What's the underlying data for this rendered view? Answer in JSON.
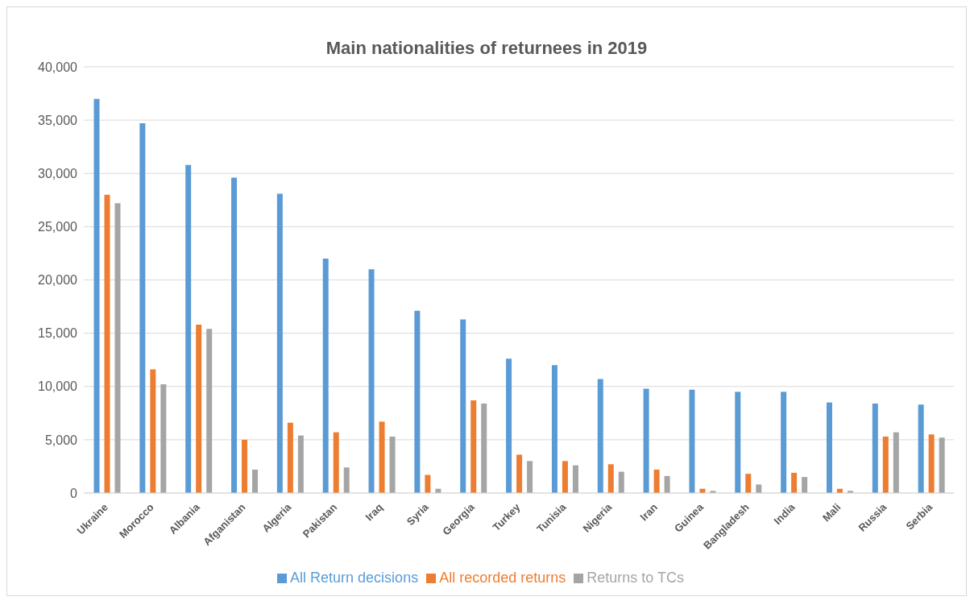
{
  "chart_data": {
    "type": "bar",
    "title": "Main nationalities of returnees in 2019",
    "categories": [
      "Ukraine",
      "Morocco",
      "Albania",
      "Afganistan",
      "Algeria",
      "Pakistan",
      "Iraq",
      "Syria",
      "Georgia",
      "Turkey",
      "Tunisia",
      "Nigeria",
      "Iran",
      "Guinea",
      "Bangladesh",
      "India",
      "Mali",
      "Russia",
      "Serbia"
    ],
    "series": [
      {
        "name": "All Return decisions",
        "color": "#5b9bd5",
        "values": [
          37000,
          34700,
          30800,
          29600,
          28100,
          22000,
          21000,
          17100,
          16300,
          12600,
          12000,
          10700,
          9800,
          9700,
          9500,
          9500,
          8500,
          8400,
          8300
        ]
      },
      {
        "name": "All recorded returns",
        "color": "#ed7d31",
        "values": [
          28000,
          11600,
          15800,
          5000,
          6600,
          5700,
          6700,
          1700,
          8700,
          3600,
          3000,
          2700,
          2200,
          400,
          1800,
          1900,
          400,
          5300,
          5500
        ]
      },
      {
        "name": "Returns to TCs",
        "color": "#a5a5a5",
        "values": [
          27200,
          10200,
          15400,
          2200,
          5400,
          2400,
          5300,
          400,
          8400,
          3000,
          2600,
          2000,
          1600,
          200,
          800,
          1500,
          200,
          5700,
          5200
        ]
      }
    ],
    "ylim": [
      0,
      40000
    ],
    "yticks": [
      {
        "value": 0,
        "label": "0"
      },
      {
        "value": 5000,
        "label": "5,000"
      },
      {
        "value": 10000,
        "label": "10,000"
      },
      {
        "value": 15000,
        "label": "15,000"
      },
      {
        "value": 20000,
        "label": "20,000"
      },
      {
        "value": 25000,
        "label": "25,000"
      },
      {
        "value": 30000,
        "label": "30,000"
      },
      {
        "value": 35000,
        "label": "35,000"
      },
      {
        "value": 40000,
        "label": "40,000"
      }
    ],
    "grid": "y",
    "legend": "bottom"
  }
}
